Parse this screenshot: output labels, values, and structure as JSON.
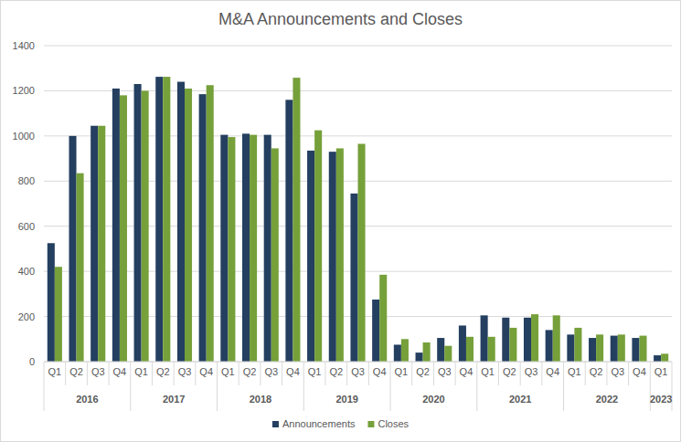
{
  "chart_data": {
    "type": "bar",
    "title": "M&A Announcements and Closes",
    "categories": [
      "Q1",
      "Q2",
      "Q3",
      "Q4",
      "Q1",
      "Q2",
      "Q3",
      "Q4",
      "Q1",
      "Q2",
      "Q3",
      "Q4",
      "Q1",
      "Q2",
      "Q3",
      "Q4",
      "Q1",
      "Q2",
      "Q3",
      "Q4",
      "Q1",
      "Q2",
      "Q3",
      "Q4",
      "Q1",
      "Q2",
      "Q3",
      "Q4",
      "Q1"
    ],
    "category_groups": [
      {
        "label": "2016",
        "span": 4
      },
      {
        "label": "2017",
        "span": 4
      },
      {
        "label": "2018",
        "span": 4
      },
      {
        "label": "2019",
        "span": 4
      },
      {
        "label": "2020",
        "span": 4
      },
      {
        "label": "2021",
        "span": 4
      },
      {
        "label": "2022",
        "span": 4
      },
      {
        "label": "2023",
        "span": 1
      }
    ],
    "series": [
      {
        "name": "Announcements",
        "color": "#243f60",
        "values": [
          525,
          1000,
          1045,
          1210,
          1230,
          1262,
          1240,
          1185,
          1005,
          1010,
          1005,
          1160,
          935,
          930,
          745,
          275,
          75,
          40,
          105,
          160,
          205,
          195,
          195,
          140,
          120,
          105,
          115,
          105,
          28
        ]
      },
      {
        "name": "Closes",
        "color": "#76a03a",
        "values": [
          420,
          835,
          1045,
          1180,
          1200,
          1262,
          1210,
          1225,
          995,
          1005,
          945,
          1258,
          1025,
          945,
          965,
          385,
          100,
          85,
          70,
          110,
          110,
          150,
          210,
          205,
          150,
          120,
          120,
          115,
          35
        ]
      }
    ],
    "ylim": [
      0,
      1400
    ],
    "yticks": [
      0,
      200,
      400,
      600,
      800,
      1000,
      1200,
      1400
    ],
    "grid": true,
    "legend": "bottom"
  }
}
